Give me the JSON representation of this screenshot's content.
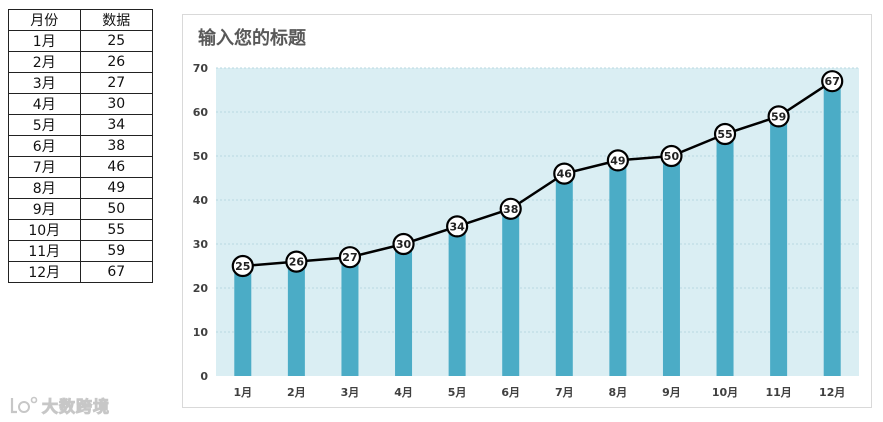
{
  "table": {
    "header_month": "月份",
    "header_value": "数据",
    "rows": [
      {
        "month": "1月",
        "value": "25"
      },
      {
        "month": "2月",
        "value": "26"
      },
      {
        "month": "3月",
        "value": "27"
      },
      {
        "month": "4月",
        "value": "30"
      },
      {
        "month": "5月",
        "value": "34"
      },
      {
        "month": "6月",
        "value": "38"
      },
      {
        "month": "7月",
        "value": "46"
      },
      {
        "month": "8月",
        "value": "49"
      },
      {
        "month": "9月",
        "value": "50"
      },
      {
        "month": "10月",
        "value": "55"
      },
      {
        "month": "11月",
        "value": "59"
      },
      {
        "month": "12月",
        "value": "67"
      }
    ]
  },
  "chart_data": {
    "type": "bar",
    "title": "输入您的标题",
    "xlabel": "",
    "ylabel": "",
    "categories": [
      "1月",
      "2月",
      "3月",
      "4月",
      "5月",
      "6月",
      "7月",
      "8月",
      "9月",
      "10月",
      "11月",
      "12月"
    ],
    "series": [
      {
        "type": "bar",
        "values": [
          25,
          26,
          27,
          30,
          34,
          38,
          46,
          49,
          50,
          55,
          59,
          67
        ]
      },
      {
        "type": "line",
        "values": [
          25,
          26,
          27,
          30,
          34,
          38,
          46,
          49,
          50,
          55,
          59,
          67
        ]
      }
    ],
    "ylim": [
      0,
      70
    ],
    "yticks": [
      0,
      10,
      20,
      30,
      40,
      50,
      60,
      70
    ],
    "grid": true,
    "data_labels": true,
    "colors": {
      "bar": "#4bacc6",
      "line": "#000000",
      "plot_background": "#daeef3",
      "grid": "#b8d8e0",
      "title": "#595959",
      "axis_text": "#404040"
    }
  },
  "watermark": {
    "text": "大数跨境",
    "icon": "ldz-logo-icon"
  }
}
